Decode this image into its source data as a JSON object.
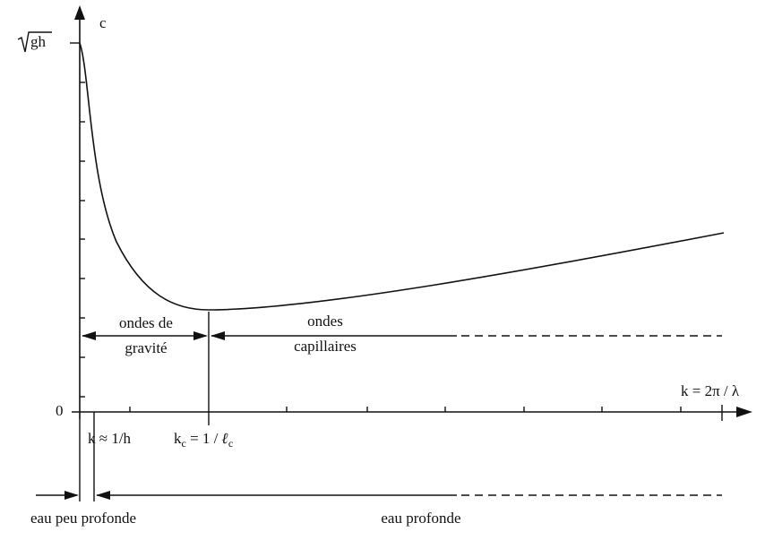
{
  "axes": {
    "y_label": "c",
    "y_top_label": "gh",
    "origin_label": "0",
    "x_label": "k = 2π / λ"
  },
  "markers": {
    "k_h": "k ≈ 1/h",
    "k_c": {
      "base": "k",
      "sub": "c",
      "middle": " = 1 / ",
      "base2": "ℓ",
      "sub2": "c"
    }
  },
  "regions": {
    "gravity": [
      "ondes de",
      "gravité"
    ],
    "capillary": [
      "ondes",
      "capillaires"
    ],
    "shallow": "eau peu profonde",
    "deep": "eau profonde"
  }
}
